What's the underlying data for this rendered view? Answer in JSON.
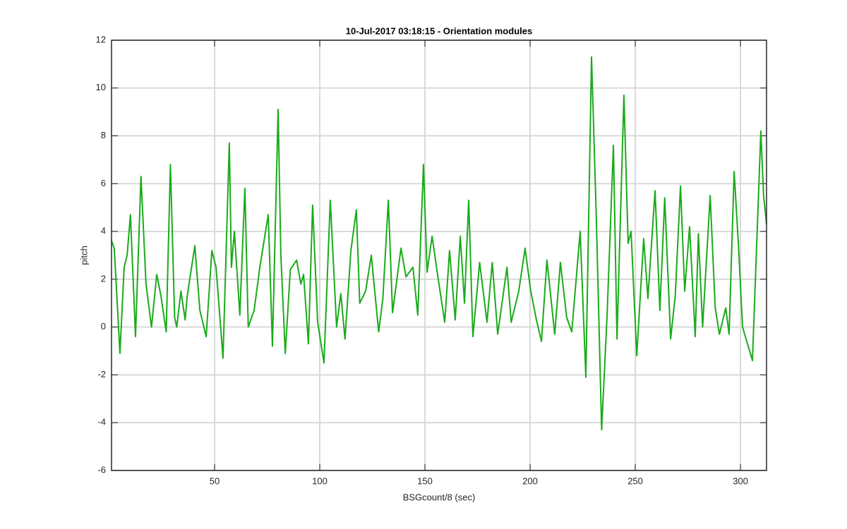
{
  "chart_data": {
    "type": "line",
    "title": "10-Jul-2017 03:18:15 - Orientation modules",
    "x_label": "BSGcount/8 (sec)",
    "y_label": "pitch",
    "color": "#1aab1a",
    "grid": true,
    "xlim": [
      1,
      312.4
    ],
    "ylim": [
      -6,
      12
    ],
    "xticks": [
      50,
      100,
      150,
      200,
      250,
      300
    ],
    "yticks": [
      -6,
      -4,
      -2,
      0,
      2,
      4,
      6,
      8,
      10,
      12
    ],
    "x": [
      1,
      2.3,
      5,
      7,
      8.4,
      10,
      12.4,
      15,
      17.4,
      20,
      22.5,
      24.5,
      27,
      29,
      31,
      32,
      34,
      36,
      37,
      40.6,
      43,
      46,
      48.7,
      50.7,
      54,
      57,
      58,
      59.4,
      62,
      64.4,
      66,
      68.8,
      71.5,
      75.5,
      77.5,
      80.2,
      81.5,
      83.6,
      86,
      89,
      91,
      92.3,
      94.6,
      96.6,
      99,
      102,
      105,
      108,
      110,
      112,
      114.8,
      117.4,
      119,
      121.8,
      124.5,
      128,
      130,
      132.6,
      134.6,
      138.6,
      141,
      144.3,
      146.6,
      149.3,
      151,
      153.4,
      156,
      159.4,
      161.7,
      164.4,
      166.8,
      168.8,
      170.8,
      172.8,
      176,
      179.5,
      182,
      184.6,
      189,
      191,
      194.6,
      197.6,
      200.3,
      203,
      205.4,
      208,
      211.7,
      214.4,
      217.4,
      219.8,
      223.8,
      226.5,
      229.2,
      231.5,
      234,
      236.6,
      239.6,
      241.3,
      244.6,
      246.6,
      248,
      250.7,
      254,
      256,
      259.4,
      261.7,
      264,
      266.8,
      269,
      271.5,
      273.5,
      275.8,
      278.5,
      280,
      282,
      285.6,
      288,
      290,
      293,
      294.6,
      297,
      299,
      301,
      305.7,
      309.7,
      311,
      312.4
    ],
    "values": [
      3.6,
      3.3,
      -1.1,
      2.5,
      3,
      4.7,
      -0.4,
      6.3,
      1.8,
      0,
      2.2,
      1.3,
      -0.2,
      6.8,
      0.4,
      0,
      1.5,
      0.3,
      1.3,
      3.4,
      0.7,
      -0.4,
      3.2,
      2.5,
      -1.3,
      7.7,
      2.5,
      4,
      0.5,
      5.8,
      0,
      0.7,
      2.5,
      4.7,
      -0.8,
      9.1,
      3,
      -1.1,
      2.4,
      2.8,
      1.8,
      2.2,
      -0.7,
      5.1,
      0.2,
      -1.5,
      5.3,
      0,
      1.4,
      -0.5,
      3.2,
      4.9,
      1,
      1.5,
      3,
      -0.2,
      1.2,
      5.3,
      0.6,
      3.3,
      2.1,
      2.5,
      0.5,
      6.8,
      2.3,
      3.8,
      2.2,
      0.2,
      3.2,
      0.3,
      3.8,
      1,
      5.3,
      -0.4,
      2.7,
      0.2,
      2.7,
      -0.3,
      2.5,
      0.2,
      1.5,
      3.3,
      1.5,
      0.3,
      -0.6,
      2.8,
      -0.3,
      2.7,
      0.4,
      -0.2,
      4,
      -2.1,
      11.3,
      4.5,
      -4.3,
      0.5,
      7.6,
      -0.5,
      9.7,
      3.5,
      4,
      -1.2,
      3.7,
      1.2,
      5.7,
      0.7,
      5.4,
      -0.5,
      1.3,
      5.9,
      1.5,
      4.2,
      -0.4,
      3.9,
      0,
      5.5,
      0.8,
      -0.3,
      0.8,
      -0.3,
      6.5,
      3.5,
      0,
      -1.4,
      8.2,
      5.5,
      4.3
    ]
  }
}
